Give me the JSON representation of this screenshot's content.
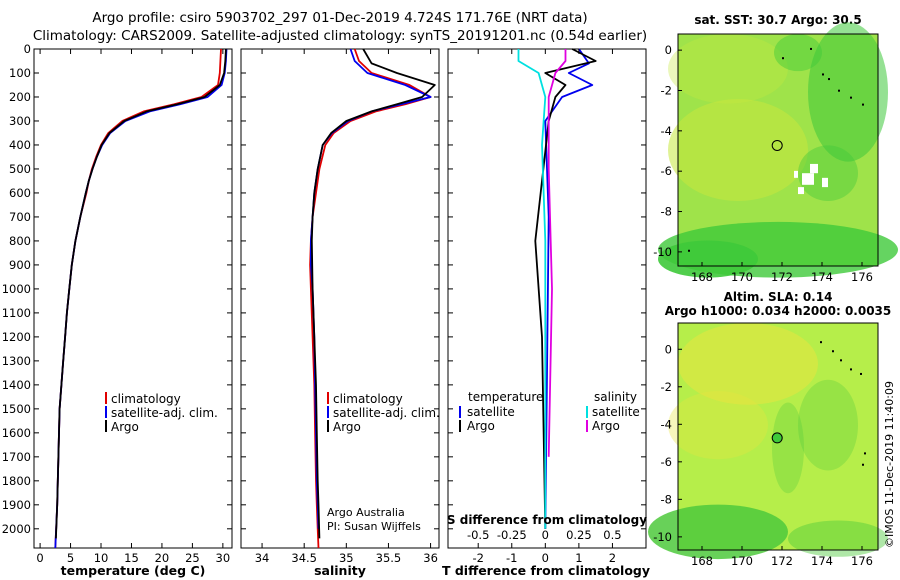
{
  "header": {
    "line1": "Argo profile: csiro 5903702_297 01-Dec-2019 4.724S 171.76E (NRT data)",
    "line2": "Climatology: CARS2009. Satellite-adjusted climatology: synTS_20191201.nc (0.54d earlier)"
  },
  "side_text": "©IMOS 11-Dec-2019 11:40:09",
  "chart_data": [
    {
      "id": "temperature",
      "type": "line",
      "xlabel": "temperature (deg C)",
      "ylabel": "",
      "xlim": [
        -1,
        31.5
      ],
      "ylim": [
        2080,
        0
      ],
      "xticks": [
        0,
        5,
        10,
        15,
        20,
        25,
        30
      ],
      "xtick_labels": [
        "0",
        "5",
        "10",
        "15",
        "20",
        "25",
        "30"
      ],
      "yticks": [
        0,
        100,
        200,
        300,
        400,
        500,
        600,
        700,
        800,
        900,
        1000,
        1100,
        1200,
        1300,
        1400,
        1500,
        1600,
        1700,
        1800,
        1900,
        2000
      ],
      "ytick_labels": [
        "0",
        "100",
        "200",
        "300",
        "400",
        "500",
        "600",
        "700",
        "800",
        "900",
        "1000",
        "1100",
        "1200",
        "1300",
        "1400",
        "1500",
        "1600",
        "1700",
        "1800",
        "1900",
        "2000"
      ],
      "legend": [
        "climatology",
        "satellite-adj. clim.",
        "Argo"
      ],
      "series": [
        {
          "name": "climatology",
          "color": "#e00000",
          "x": [
            29.7,
            29.6,
            29.5,
            29.2,
            26.5,
            22,
            17,
            13.5,
            11.2,
            10.0,
            9.2,
            8.5,
            8.0,
            7.6,
            6.6,
            5.8,
            5.2,
            4.8,
            4.4,
            4.1,
            3.8,
            3.5,
            3.2,
            3.0,
            2.8,
            2.5
          ],
          "y": [
            0,
            50,
            100,
            150,
            200,
            230,
            260,
            300,
            350,
            400,
            450,
            500,
            550,
            600,
            700,
            800,
            900,
            1000,
            1100,
            1200,
            1300,
            1400,
            1500,
            1700,
            1900,
            2080
          ]
        },
        {
          "name": "satellite-adj. clim.",
          "color": "#0000ee",
          "x": [
            30.6,
            30.5,
            30.3,
            29.8,
            27.5,
            23,
            18,
            14,
            11.5,
            10.2,
            9.3,
            8.6,
            8.0,
            7.5,
            6.6,
            5.8,
            5.2,
            4.8,
            4.4,
            4.1,
            3.8,
            3.5,
            3.2,
            3.0,
            2.8,
            2.5
          ],
          "y": [
            0,
            50,
            100,
            150,
            200,
            230,
            260,
            300,
            350,
            400,
            450,
            500,
            550,
            600,
            700,
            800,
            900,
            1000,
            1100,
            1200,
            1300,
            1400,
            1500,
            1700,
            1900,
            2080
          ]
        },
        {
          "name": "Argo",
          "color": "#000000",
          "x": [
            30.5,
            30.4,
            30.2,
            29.5,
            27.0,
            22.5,
            17.5,
            13.8,
            11.4,
            10.1,
            9.3,
            8.6,
            8.0,
            7.5,
            6.6,
            5.8,
            5.2,
            4.8,
            4.4,
            4.1,
            3.8,
            3.5,
            3.2,
            3.0,
            2.8,
            2.6
          ],
          "y": [
            0,
            50,
            100,
            150,
            200,
            230,
            260,
            300,
            350,
            400,
            450,
            500,
            550,
            600,
            700,
            800,
            900,
            1000,
            1100,
            1200,
            1300,
            1400,
            1500,
            1700,
            1900,
            2040
          ]
        }
      ]
    },
    {
      "id": "salinity",
      "type": "line",
      "xlabel": "salinity",
      "xlim": [
        33.75,
        36.1
      ],
      "ylim": [
        2080,
        0
      ],
      "xticks": [
        34,
        34.5,
        35,
        35.5,
        36
      ],
      "xtick_labels": [
        "34",
        "34.5",
        "35",
        "35.5",
        "36"
      ],
      "legend": [
        "climatology",
        "satellite-adj. clim.",
        "Argo"
      ],
      "annotation": [
        "Argo Australia",
        "PI: Susan Wijffels"
      ],
      "series": [
        {
          "name": "climatology",
          "color": "#e00000",
          "x": [
            35.1,
            35.15,
            35.3,
            35.75,
            36.0,
            35.7,
            35.35,
            35.05,
            34.85,
            34.75,
            34.68,
            34.64,
            34.6,
            34.58,
            34.57,
            34.58,
            34.6,
            34.62,
            34.63,
            34.64,
            34.65,
            34.66,
            34.67
          ],
          "y": [
            0,
            50,
            100,
            150,
            200,
            230,
            260,
            300,
            350,
            400,
            500,
            600,
            700,
            800,
            900,
            1000,
            1200,
            1400,
            1600,
            1800,
            1900,
            2000,
            2080
          ]
        },
        {
          "name": "satellite-adj. clim.",
          "color": "#0000ee",
          "x": [
            35.05,
            35.1,
            35.25,
            35.7,
            36.0,
            35.65,
            35.3,
            35.02,
            34.83,
            34.72,
            34.66,
            34.62,
            34.6,
            34.58,
            34.58,
            34.6,
            34.62,
            34.63,
            34.64,
            34.65,
            34.66,
            34.67
          ],
          "y": [
            0,
            50,
            100,
            150,
            200,
            230,
            260,
            300,
            350,
            400,
            500,
            600,
            700,
            800,
            900,
            1000,
            1200,
            1400,
            1600,
            1800,
            1900,
            2000
          ]
        },
        {
          "name": "Argo",
          "color": "#000000",
          "x": [
            35.2,
            35.3,
            35.6,
            36.05,
            35.9,
            35.6,
            35.3,
            35.0,
            34.82,
            34.72,
            34.66,
            34.62,
            34.6,
            34.59,
            34.6,
            34.62,
            34.64,
            34.65,
            34.66,
            34.67,
            34.68
          ],
          "y": [
            0,
            60,
            100,
            150,
            200,
            230,
            260,
            300,
            350,
            400,
            500,
            600,
            700,
            800,
            1000,
            1200,
            1400,
            1600,
            1800,
            1900,
            2040
          ]
        }
      ]
    },
    {
      "id": "difference",
      "type": "line",
      "xlabel": "T difference from climatology",
      "top_label": "S difference from climatology",
      "xlim": [
        -2.9,
        3.0
      ],
      "ylim": [
        2080,
        0
      ],
      "xticks": [
        -2,
        -1,
        0,
        1,
        2
      ],
      "xtick_labels": [
        "-2",
        "-1",
        "0",
        "1",
        "2"
      ],
      "xticks_top": [
        -2.0,
        -1.0,
        0,
        1.0,
        2.0
      ],
      "xtick_top_labels": [
        "-0.5",
        "-0.25",
        "0",
        "0.25",
        "0.5"
      ],
      "legend_left_title": "temperature",
      "legend_right_title": "salinity",
      "legend_left": [
        "satellite",
        "Argo"
      ],
      "legend_right": [
        "satellite",
        "Argo"
      ],
      "series": [
        {
          "name": "T satellite",
          "color": "#0000ee",
          "x": [
            1.0,
            1.3,
            0.7,
            1.4,
            0.5,
            0.0,
            0.1,
            0.0
          ],
          "y": [
            0,
            60,
            100,
            150,
            200,
            300,
            700,
            2000
          ]
        },
        {
          "name": "T Argo",
          "color": "#000000",
          "x": [
            0.8,
            1.5,
            0.0,
            0.6,
            0.3,
            0.1,
            -0.3,
            -0.1,
            0.0
          ],
          "y": [
            0,
            50,
            100,
            150,
            200,
            300,
            800,
            1200,
            2000
          ]
        },
        {
          "name": "S satellite",
          "color": "#00e0e0",
          "x": [
            -0.8,
            -0.8,
            -0.2,
            0.0,
            -0.1,
            0.0,
            0.0
          ],
          "y": [
            0,
            50,
            100,
            200,
            400,
            800,
            2000
          ]
        },
        {
          "name": "S Argo",
          "color": "#e000e0",
          "x": [
            0.6,
            0.6,
            0.3,
            0.1,
            0.1,
            0.2,
            0.1
          ],
          "y": [
            0,
            50,
            100,
            200,
            500,
            1000,
            1700
          ]
        }
      ]
    },
    {
      "id": "sst-map",
      "type": "heatmap",
      "title": "sat. SST: 30.7 Argo: 30.5",
      "xlim": [
        166.8,
        176.8
      ],
      "ylim": [
        -10.7,
        0.8
      ],
      "xticks": [
        168,
        170,
        172,
        174,
        176
      ],
      "xtick_labels": [
        "168",
        "170",
        "172",
        "174",
        "176"
      ],
      "yticks": [
        0,
        -2,
        -4,
        -6,
        -8,
        -10
      ],
      "ytick_labels": [
        "0",
        "-2",
        "-4",
        "-6",
        "-8",
        "-10"
      ],
      "marker": {
        "lon": 171.76,
        "lat": -4.724
      },
      "colors": {
        "base": "#9fe34a",
        "warm": "#c7e83e",
        "cool": "#3ec93a",
        "land": "#ffffff"
      }
    },
    {
      "id": "sla-map",
      "type": "heatmap",
      "title": "Altim. SLA: 0.14",
      "subtitle": "Argo h1000: 0.034 h2000: 0.0035",
      "xlim": [
        166.8,
        176.8
      ],
      "ylim": [
        -10.7,
        1.4
      ],
      "xticks": [
        168,
        170,
        172,
        174,
        176
      ],
      "xtick_labels": [
        "168",
        "170",
        "172",
        "174",
        "176"
      ],
      "yticks": [
        0,
        -2,
        -4,
        -6,
        -8,
        -10
      ],
      "ytick_labels": [
        "0",
        "-2",
        "-4",
        "-6",
        "-8",
        "-10"
      ],
      "marker": {
        "lon": 171.76,
        "lat": -4.724
      },
      "colors": {
        "base": "#b6ee4a",
        "warm": "#e8e640",
        "cool": "#4ec93c",
        "marker": "#3ec93a"
      }
    }
  ]
}
